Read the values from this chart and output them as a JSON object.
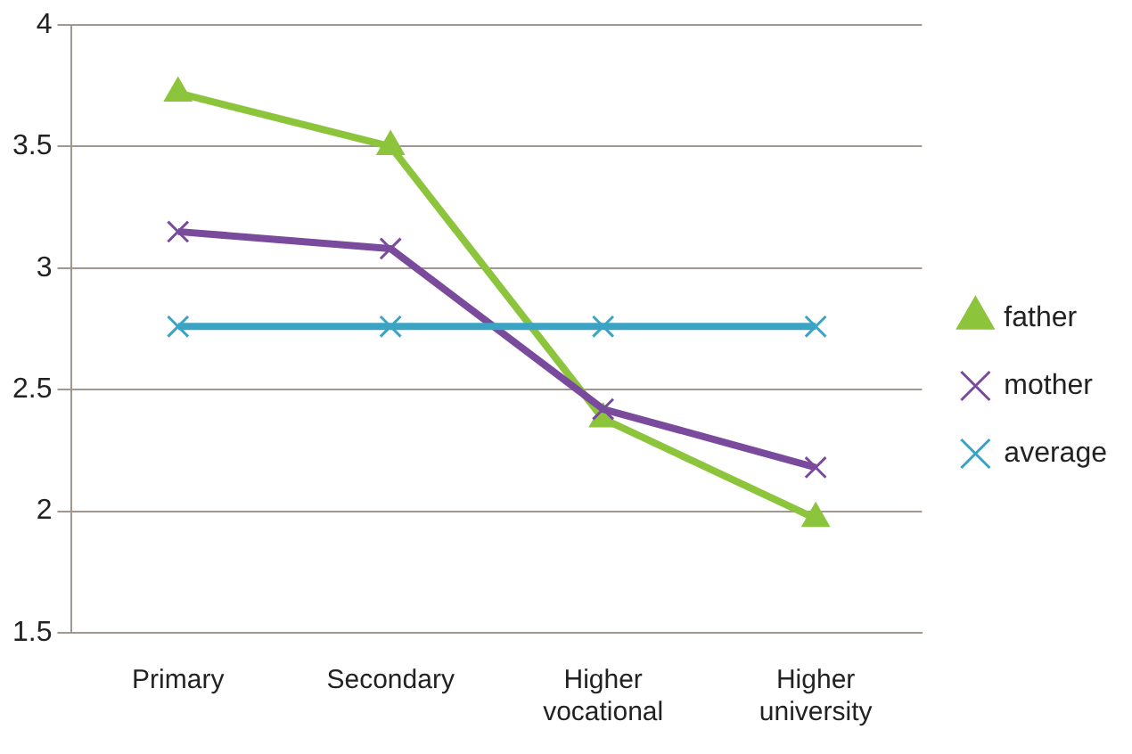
{
  "chart_data": {
    "type": "line",
    "categories": [
      "Primary",
      "Secondary",
      "Higher vocational",
      "Higher university"
    ],
    "series": [
      {
        "name": "father",
        "color": "#8cc43c",
        "marker": "triangle",
        "values": [
          3.72,
          3.5,
          2.38,
          1.97
        ]
      },
      {
        "name": "mother",
        "color": "#7a4b9c",
        "marker": "cross",
        "values": [
          3.15,
          3.08,
          2.42,
          2.18
        ]
      },
      {
        "name": "average",
        "color": "#3ba3c3",
        "marker": "cross",
        "values": [
          2.76,
          2.76,
          2.76,
          2.76
        ]
      }
    ],
    "ylim": [
      1.5,
      4
    ],
    "yticks": [
      1.5,
      2,
      2.5,
      3,
      3.5,
      4
    ],
    "grid": "y",
    "legend": "right",
    "line_style": "solid"
  }
}
